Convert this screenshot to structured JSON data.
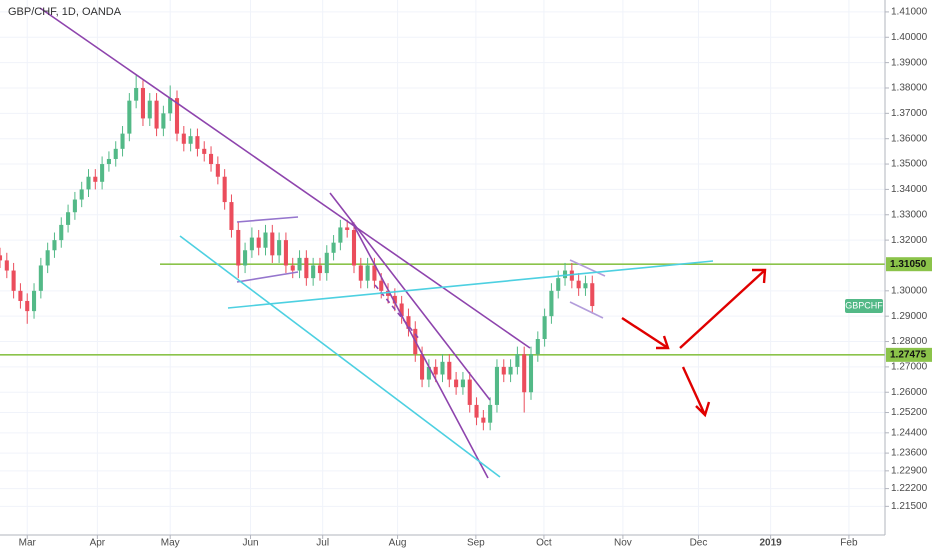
{
  "chart_data": {
    "type": "candlestick",
    "title": "GBP/CHF, 1D, OANDA",
    "symbol_tag": "GBPCHF",
    "up_color": "#53b987",
    "down_color": "#eb4d5c",
    "grid": true,
    "xlim": [
      -4,
      126
    ],
    "ylim": [
      1.2037,
      1.4147
    ],
    "xticks": [
      {
        "value": 0,
        "label": "Mar"
      },
      {
        "value": 10.3,
        "label": "Apr"
      },
      {
        "value": 21,
        "label": "May"
      },
      {
        "value": 32.8,
        "label": "Jun"
      },
      {
        "value": 43.4,
        "label": "Jul"
      },
      {
        "value": 54.4,
        "label": "Aug"
      },
      {
        "value": 65.9,
        "label": "Sep"
      },
      {
        "value": 75.9,
        "label": "Oct"
      },
      {
        "value": 87.5,
        "label": "Nov"
      },
      {
        "value": 98.6,
        "label": "Dec"
      },
      {
        "value": 109.2,
        "label": "2019"
      },
      {
        "value": 120.7,
        "label": "Feb"
      }
    ],
    "yticks": [
      {
        "value": 1.41,
        "label": "1.41000"
      },
      {
        "value": 1.4,
        "label": "1.40000"
      },
      {
        "value": 1.39,
        "label": "1.39000"
      },
      {
        "value": 1.38,
        "label": "1.38000"
      },
      {
        "value": 1.37,
        "label": "1.37000"
      },
      {
        "value": 1.36,
        "label": "1.36000"
      },
      {
        "value": 1.35,
        "label": "1.35000"
      },
      {
        "value": 1.34,
        "label": "1.34000"
      },
      {
        "value": 1.33,
        "label": "1.33000"
      },
      {
        "value": 1.32,
        "label": "1.32000"
      },
      {
        "value": 1.3,
        "label": "1.30000"
      },
      {
        "value": 1.29,
        "label": "1.29000"
      },
      {
        "value": 1.28,
        "label": "1.28000"
      },
      {
        "value": 1.27,
        "label": "1.27000"
      },
      {
        "value": 1.26,
        "label": "1.26000"
      },
      {
        "value": 1.252,
        "label": "1.25200"
      },
      {
        "value": 1.244,
        "label": "1.24400"
      },
      {
        "value": 1.236,
        "label": "1.23600"
      },
      {
        "value": 1.229,
        "label": "1.22900"
      },
      {
        "value": 1.222,
        "label": "1.22200"
      },
      {
        "value": 1.215,
        "label": "1.21500"
      }
    ],
    "hlines": [
      {
        "value": 1.3105,
        "label": "1.31050",
        "color": "#8bc34a"
      },
      {
        "value": 1.27475,
        "label": "1.27475",
        "color": "#8bc34a"
      }
    ],
    "x": [
      -4,
      -3,
      -2,
      -1,
      0,
      1,
      2,
      3,
      4,
      5,
      6,
      7,
      8,
      9,
      10,
      11,
      12,
      13,
      14,
      15,
      16,
      17,
      18,
      19,
      20,
      21,
      22,
      23,
      24,
      25,
      26,
      27,
      28,
      29,
      30,
      31,
      32,
      33,
      34,
      35,
      36,
      37,
      38,
      39,
      40,
      41,
      42,
      43,
      44,
      45,
      46,
      47,
      48,
      49,
      50,
      51,
      52,
      53,
      54,
      55,
      56,
      57,
      58,
      59,
      60,
      61,
      62,
      63,
      64,
      65,
      66,
      67,
      68,
      69,
      70,
      71,
      72,
      73,
      74,
      75,
      76,
      77,
      78,
      79,
      80,
      81,
      82,
      83
    ],
    "open": [
      1.314,
      1.312,
      1.308,
      1.3,
      1.296,
      1.292,
      1.3,
      1.31,
      1.316,
      1.32,
      1.326,
      1.331,
      1.336,
      1.34,
      1.345,
      1.343,
      1.35,
      1.352,
      1.356,
      1.362,
      1.375,
      1.38,
      1.368,
      1.375,
      1.364,
      1.37,
      1.376,
      1.362,
      1.358,
      1.361,
      1.356,
      1.354,
      1.35,
      1.345,
      1.335,
      1.324,
      1.31,
      1.316,
      1.321,
      1.317,
      1.323,
      1.314,
      1.32,
      1.31,
      1.308,
      1.313,
      1.305,
      1.31,
      1.307,
      1.315,
      1.319,
      1.325,
      1.324,
      1.31,
      1.304,
      1.31,
      1.304,
      1.3,
      1.298,
      1.295,
      1.29,
      1.285,
      1.275,
      1.265,
      1.27,
      1.267,
      1.272,
      1.265,
      1.262,
      1.265,
      1.255,
      1.25,
      1.248,
      1.255,
      1.27,
      1.267,
      1.27,
      1.275,
      1.26,
      1.275,
      1.281,
      1.29,
      1.3,
      1.305,
      1.308,
      1.304,
      1.301,
      1.303
    ],
    "high": [
      1.317,
      1.315,
      1.311,
      1.303,
      1.299,
      1.303,
      1.313,
      1.319,
      1.323,
      1.329,
      1.334,
      1.339,
      1.343,
      1.348,
      1.348,
      1.353,
      1.355,
      1.359,
      1.365,
      1.378,
      1.385,
      1.383,
      1.378,
      1.378,
      1.373,
      1.381,
      1.379,
      1.365,
      1.364,
      1.364,
      1.359,
      1.357,
      1.353,
      1.348,
      1.338,
      1.327,
      1.319,
      1.325,
      1.324,
      1.326,
      1.326,
      1.323,
      1.323,
      1.313,
      1.316,
      1.316,
      1.313,
      1.313,
      1.318,
      1.322,
      1.328,
      1.328,
      1.327,
      1.313,
      1.313,
      1.313,
      1.307,
      1.303,
      1.301,
      1.298,
      1.293,
      1.288,
      1.278,
      1.273,
      1.273,
      1.275,
      1.275,
      1.268,
      1.268,
      1.268,
      1.258,
      1.253,
      1.258,
      1.273,
      1.273,
      1.273,
      1.278,
      1.278,
      1.278,
      1.284,
      1.293,
      1.303,
      1.308,
      1.311,
      1.311,
      1.307,
      1.306,
      1.306
    ],
    "low": [
      1.309,
      1.305,
      1.297,
      1.293,
      1.287,
      1.289,
      1.297,
      1.307,
      1.313,
      1.317,
      1.323,
      1.328,
      1.333,
      1.337,
      1.34,
      1.34,
      1.347,
      1.349,
      1.353,
      1.359,
      1.372,
      1.365,
      1.365,
      1.361,
      1.361,
      1.367,
      1.359,
      1.355,
      1.355,
      1.353,
      1.351,
      1.347,
      1.342,
      1.332,
      1.321,
      1.305,
      1.307,
      1.313,
      1.314,
      1.314,
      1.311,
      1.311,
      1.307,
      1.305,
      1.305,
      1.302,
      1.302,
      1.304,
      1.304,
      1.312,
      1.316,
      1.321,
      1.307,
      1.301,
      1.301,
      1.301,
      1.297,
      1.295,
      1.292,
      1.287,
      1.282,
      1.272,
      1.262,
      1.262,
      1.264,
      1.264,
      1.262,
      1.259,
      1.259,
      1.252,
      1.247,
      1.245,
      1.245,
      1.252,
      1.264,
      1.264,
      1.267,
      1.252,
      1.257,
      1.272,
      1.278,
      1.287,
      1.297,
      1.302,
      1.301,
      1.298,
      1.298,
      1.291
    ],
    "close": [
      1.312,
      1.308,
      1.3,
      1.296,
      1.292,
      1.3,
      1.31,
      1.316,
      1.32,
      1.326,
      1.331,
      1.336,
      1.34,
      1.345,
      1.343,
      1.35,
      1.352,
      1.356,
      1.362,
      1.375,
      1.38,
      1.368,
      1.375,
      1.364,
      1.37,
      1.376,
      1.362,
      1.358,
      1.361,
      1.356,
      1.354,
      1.35,
      1.345,
      1.335,
      1.324,
      1.31,
      1.316,
      1.321,
      1.317,
      1.323,
      1.314,
      1.32,
      1.31,
      1.308,
      1.313,
      1.305,
      1.31,
      1.307,
      1.315,
      1.319,
      1.325,
      1.324,
      1.31,
      1.304,
      1.31,
      1.304,
      1.3,
      1.298,
      1.295,
      1.29,
      1.285,
      1.275,
      1.265,
      1.27,
      1.267,
      1.272,
      1.265,
      1.262,
      1.265,
      1.255,
      1.25,
      1.248,
      1.255,
      1.27,
      1.267,
      1.27,
      1.275,
      1.26,
      1.275,
      1.281,
      1.29,
      1.3,
      1.305,
      1.308,
      1.304,
      1.301,
      1.303,
      1.294
    ]
  }
}
